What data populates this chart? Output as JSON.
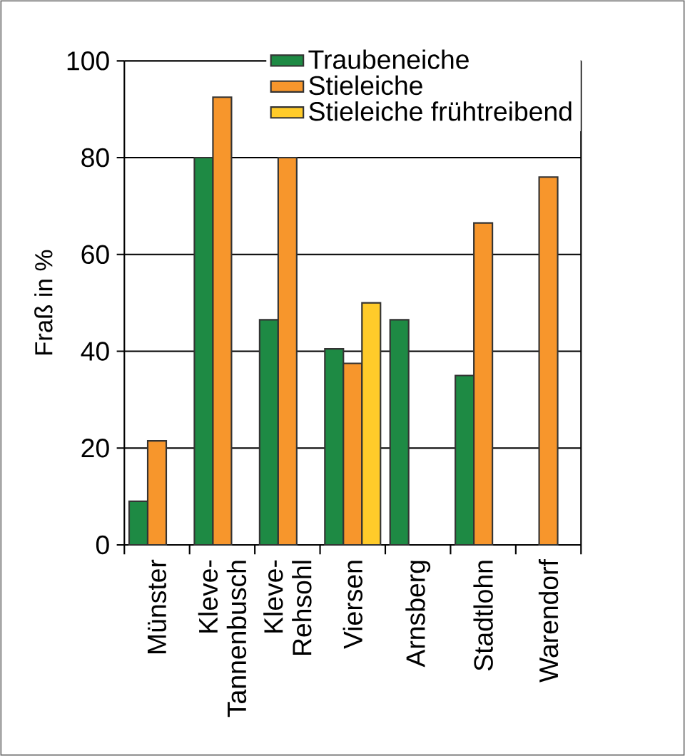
{
  "chart_data": {
    "type": "bar",
    "ylabel": "Fraß in %",
    "categories": [
      "Münster",
      "Kleve-Tannenbusch",
      "Kleve-Rehsohl",
      "Viersen",
      "Arnsberg",
      "Stadtlohn",
      "Warendorf"
    ],
    "series": [
      {
        "name": "Traubeneiche",
        "color": "#1e8a44",
        "values": [
          9,
          80,
          46.5,
          40.5,
          46.5,
          35,
          null
        ]
      },
      {
        "name": "Stieleiche",
        "color": "#f7962c",
        "values": [
          21.5,
          92.5,
          80,
          37.5,
          null,
          66.5,
          76
        ]
      },
      {
        "name": "Stieleiche frühtreibend",
        "color": "#ffcb2a",
        "values": [
          null,
          null,
          null,
          50,
          null,
          null,
          null
        ]
      }
    ],
    "ylim": [
      0,
      100
    ],
    "yticks": [
      0,
      20,
      40,
      60,
      80,
      100
    ],
    "grid": "y",
    "legend": "top right"
  }
}
